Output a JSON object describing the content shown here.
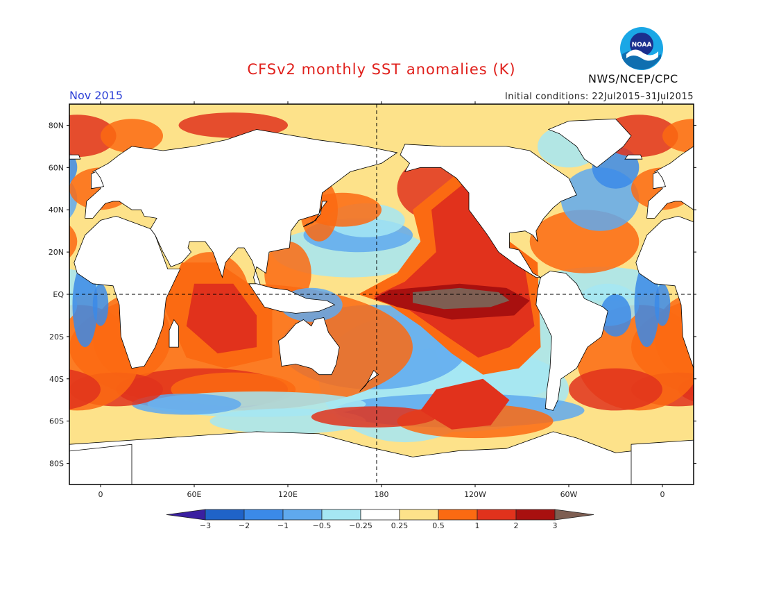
{
  "header": {
    "title": "CFSv2 monthly SST anomalies (K)",
    "month": "Nov 2015",
    "initial_conditions": "Initial conditions: 22Jul2015–31Jul2015",
    "agency": "NWS/NCEP/CPC",
    "logo_text": "NOAA"
  },
  "map": {
    "projection": "equirectangular",
    "lon_range": [
      -20,
      380
    ],
    "lat_range": [
      -90,
      90
    ],
    "lat_ticks": [
      {
        "lat": 80,
        "label": "80N"
      },
      {
        "lat": 60,
        "label": "60N"
      },
      {
        "lat": 40,
        "label": "40N"
      },
      {
        "lat": 20,
        "label": "20N"
      },
      {
        "lat": 0,
        "label": "EQ"
      },
      {
        "lat": -20,
        "label": "20S"
      },
      {
        "lat": -40,
        "label": "40S"
      },
      {
        "lat": -60,
        "label": "60S"
      },
      {
        "lat": -80,
        "label": "80S"
      }
    ],
    "lon_ticks": [
      {
        "lon": 0,
        "label": "0"
      },
      {
        "lon": 60,
        "label": "60E"
      },
      {
        "lon": 120,
        "label": "120E"
      },
      {
        "lon": 180,
        "label": "180"
      },
      {
        "lon": 240,
        "label": "120W"
      },
      {
        "lon": 300,
        "label": "60W"
      },
      {
        "lon": 360,
        "label": "0"
      }
    ],
    "reference_lines": {
      "equator": true,
      "dateline": true
    },
    "colors": {
      "land": "#ffffff",
      "coast": "#000000",
      "ocean_default": "#fde28a"
    }
  },
  "colorbar": {
    "levels": [
      "-3",
      "-2",
      "-1",
      "-0.5",
      "-0.25",
      "0.25",
      "0.5",
      "1",
      "2",
      "3"
    ],
    "colors": [
      "#3a1fa0",
      "#1f63c8",
      "#3b8ae8",
      "#5fa9ee",
      "#a5e6f3",
      "#ffffff",
      "#fde28a",
      "#fb6a12",
      "#e1321c",
      "#a8100f",
      "#7e5e52"
    ]
  }
}
